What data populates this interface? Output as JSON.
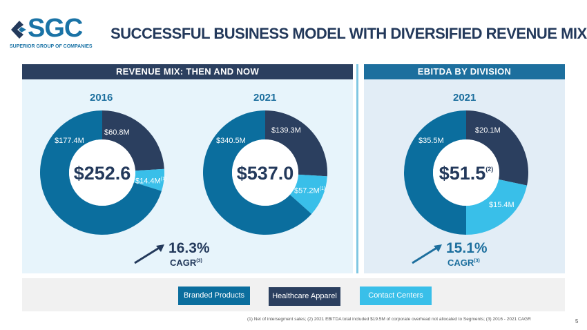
{
  "logo": {
    "text": "SGC",
    "subtitle": "SUPERIOR GROUP OF COMPANIES"
  },
  "title": "SUCCESSFUL BUSINESS MODEL WITH DIVERSIFIED REVENUE MIX",
  "revenue_panel": {
    "header": "REVENUE MIX: THEN AND NOW"
  },
  "ebitda_panel": {
    "header": "EBITDA BY DIVISION"
  },
  "colors": {
    "branded": "#0b6e9e",
    "healthcare": "#2b3f5f",
    "contact": "#39bfe9"
  },
  "donuts": [
    {
      "year": "2016",
      "total": "$252.6",
      "total_sup": "",
      "values": [
        60.8,
        14.4,
        177.4
      ],
      "labels": [
        "$60.8M",
        "$14.4M",
        "$177.4M"
      ],
      "sups": [
        "",
        "(1)",
        ""
      ]
    },
    {
      "year": "2021",
      "total": "$537.0",
      "total_sup": "",
      "values": [
        139.3,
        57.2,
        340.5
      ],
      "labels": [
        "$139.3M",
        "$57.2M",
        "$340.5M"
      ],
      "sups": [
        "",
        "(1)",
        ""
      ]
    },
    {
      "year": "2021",
      "total": "$51.5",
      "total_sup": "(2)",
      "values": [
        20.1,
        15.4,
        35.5
      ],
      "labels": [
        "$20.1M",
        "$15.4M",
        "$35.5M"
      ],
      "sups": [
        "",
        "",
        ""
      ]
    }
  ],
  "growth": [
    {
      "value": "16.3%",
      "label": "CAGR",
      "sup": "(3)"
    },
    {
      "value": "15.1%",
      "label": "CAGR",
      "sup": "(3)"
    }
  ],
  "legend": [
    "Branded Products",
    "Healthcare Apparel",
    "Contact Centers"
  ],
  "footnote": "(1) Net of intersegment sales; (2) 2021 EBITDA total included $19.5M of corporate overhead not allocated to Segments; (3) 2016 - 2021 CAGR",
  "page_number": "5"
}
